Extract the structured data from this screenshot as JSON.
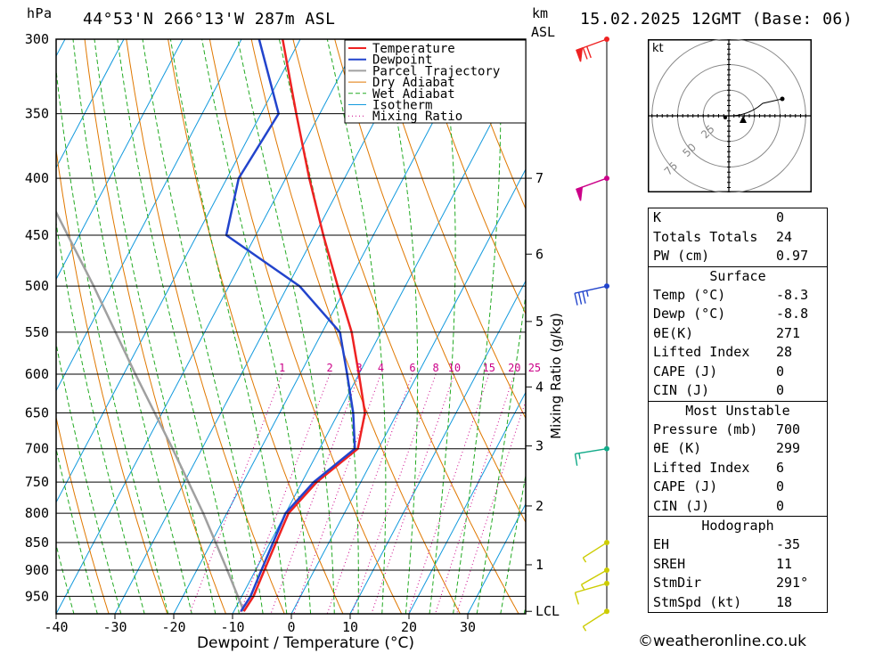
{
  "header": {
    "hpa_unit": "hPa",
    "location": "44°53'N  266°13'W  287m  ASL",
    "km_unit": "km",
    "asl_unit": "ASL",
    "datetime": "15.02.2025  12GMT  (Base: 06)"
  },
  "chart_data": {
    "type": "skew-t log-p",
    "xlabel": "Dewpoint / Temperature (°C)",
    "ylabel_right": "Mixing Ratio (g/kg)",
    "pressure_levels": [
      300,
      350,
      400,
      450,
      500,
      550,
      600,
      650,
      700,
      750,
      800,
      850,
      900,
      950
    ],
    "temperature_ticks": [
      -40,
      -30,
      -20,
      -10,
      0,
      10,
      20,
      30
    ],
    "km_ticks": [
      {
        "label": "7",
        "p": 400
      },
      {
        "label": "6",
        "p": 468
      },
      {
        "label": "5",
        "p": 538
      },
      {
        "label": "4",
        "p": 616
      },
      {
        "label": "3",
        "p": 696
      },
      {
        "label": "2",
        "p": 788
      },
      {
        "label": "1",
        "p": 890
      },
      {
        "label": "LCL",
        "p": 980
      }
    ],
    "mixing_ratio_labels": [
      "1",
      "2",
      "3",
      "4",
      "6",
      "8",
      "10",
      "15",
      "20",
      "25"
    ],
    "mixing_ratio_values": [
      1,
      2,
      3,
      4,
      6,
      8,
      10,
      15,
      20,
      25
    ],
    "legend": [
      {
        "name": "Temperature",
        "color": "#ee2222"
      },
      {
        "name": "Dewpoint",
        "color": "#2244cc"
      },
      {
        "name": "Parcel Trajectory",
        "color": "#a0a0a0"
      },
      {
        "name": "Dry Adiabat",
        "color": "#e07800"
      },
      {
        "name": "Wet Adiabat",
        "color": "#22aa22"
      },
      {
        "name": "Isotherm",
        "color": "#1199dd"
      },
      {
        "name": "Mixing Ratio",
        "color": "#cc0088"
      }
    ],
    "temperature_profile": [
      {
        "p": 980,
        "t": -8.3
      },
      {
        "p": 950,
        "t": -8.0
      },
      {
        "p": 900,
        "t": -8.5
      },
      {
        "p": 850,
        "t": -9.0
      },
      {
        "p": 800,
        "t": -9.5
      },
      {
        "p": 750,
        "t": -7.5
      },
      {
        "p": 700,
        "t": -3.5
      },
      {
        "p": 650,
        "t": -5.5
      },
      {
        "p": 600,
        "t": -10.0
      },
      {
        "p": 550,
        "t": -15.0
      },
      {
        "p": 500,
        "t": -21.5
      },
      {
        "p": 450,
        "t": -28.5
      },
      {
        "p": 400,
        "t": -36.0
      },
      {
        "p": 350,
        "t": -44.0
      },
      {
        "p": 300,
        "t": -53.0
      }
    ],
    "dewpoint_profile": [
      {
        "p": 980,
        "t": -8.8
      },
      {
        "p": 950,
        "t": -8.5
      },
      {
        "p": 900,
        "t": -9.0
      },
      {
        "p": 850,
        "t": -9.5
      },
      {
        "p": 800,
        "t": -10.0
      },
      {
        "p": 750,
        "t": -8.0
      },
      {
        "p": 700,
        "t": -4.0
      },
      {
        "p": 650,
        "t": -7.5
      },
      {
        "p": 600,
        "t": -12.0
      },
      {
        "p": 550,
        "t": -17.0
      },
      {
        "p": 500,
        "t": -28.0
      },
      {
        "p": 450,
        "t": -45.0
      },
      {
        "p": 400,
        "t": -48.0
      },
      {
        "p": 350,
        "t": -47.0
      },
      {
        "p": 300,
        "t": -57.0
      }
    ],
    "parcel_profile": [
      {
        "p": 980,
        "t": -8.3
      },
      {
        "p": 900,
        "t": -14.8
      },
      {
        "p": 800,
        "t": -24.0
      },
      {
        "p": 700,
        "t": -35.0
      },
      {
        "p": 600,
        "t": -48.0
      },
      {
        "p": 500,
        "t": -63.0
      },
      {
        "p": 400,
        "t": -82.0
      }
    ],
    "wind_barbs": [
      {
        "p": 300,
        "dir": 250,
        "speed": 70,
        "color": "#ee2222"
      },
      {
        "p": 400,
        "dir": 250,
        "speed": 50,
        "color": "#cc0088"
      },
      {
        "p": 500,
        "dir": 270,
        "speed": 35,
        "color": "#2244cc"
      },
      {
        "p": 700,
        "dir": 280,
        "speed": 15,
        "color": "#11aa88"
      },
      {
        "p": 850,
        "dir": 225,
        "speed": 8,
        "color": "#cccc00"
      },
      {
        "p": 900,
        "dir": 230,
        "speed": 8,
        "color": "#cccc00"
      },
      {
        "p": 925,
        "dir": 260,
        "speed": 10,
        "color": "#cccc00"
      },
      {
        "p": 980,
        "dir": 225,
        "speed": 8,
        "color": "#cccc00"
      }
    ]
  },
  "hodograph": {
    "unit": "kt",
    "ring_labels": [
      "25",
      "50",
      "75"
    ],
    "ring_values": [
      25,
      50,
      75
    ]
  },
  "indices": [
    {
      "label": "K",
      "value": "0"
    },
    {
      "label": "Totals Totals",
      "value": "24"
    },
    {
      "label": "PW (cm)",
      "value": "0.97"
    }
  ],
  "surface": {
    "title": "Surface",
    "rows": [
      {
        "label": "Temp (°C)",
        "value": "-8.3"
      },
      {
        "label": "Dewp (°C)",
        "value": "-8.8"
      },
      {
        "label": "θE(K)",
        "value": "271"
      },
      {
        "label": "Lifted Index",
        "value": "28"
      },
      {
        "label": "CAPE (J)",
        "value": "0"
      },
      {
        "label": "CIN (J)",
        "value": "0"
      }
    ]
  },
  "most_unstable": {
    "title": "Most Unstable",
    "rows": [
      {
        "label": "Pressure (mb)",
        "value": "700"
      },
      {
        "label": "θE (K)",
        "value": "299"
      },
      {
        "label": "Lifted Index",
        "value": "6"
      },
      {
        "label": "CAPE (J)",
        "value": "0"
      },
      {
        "label": "CIN (J)",
        "value": "0"
      }
    ]
  },
  "hodograph_stats": {
    "title": "Hodograph",
    "rows": [
      {
        "label": "EH",
        "value": "-35"
      },
      {
        "label": "SREH",
        "value": "11"
      },
      {
        "label": "StmDir",
        "value": "291°"
      },
      {
        "label": "StmSpd (kt)",
        "value": "18"
      }
    ]
  },
  "credit": "©weatheronline.co.uk"
}
